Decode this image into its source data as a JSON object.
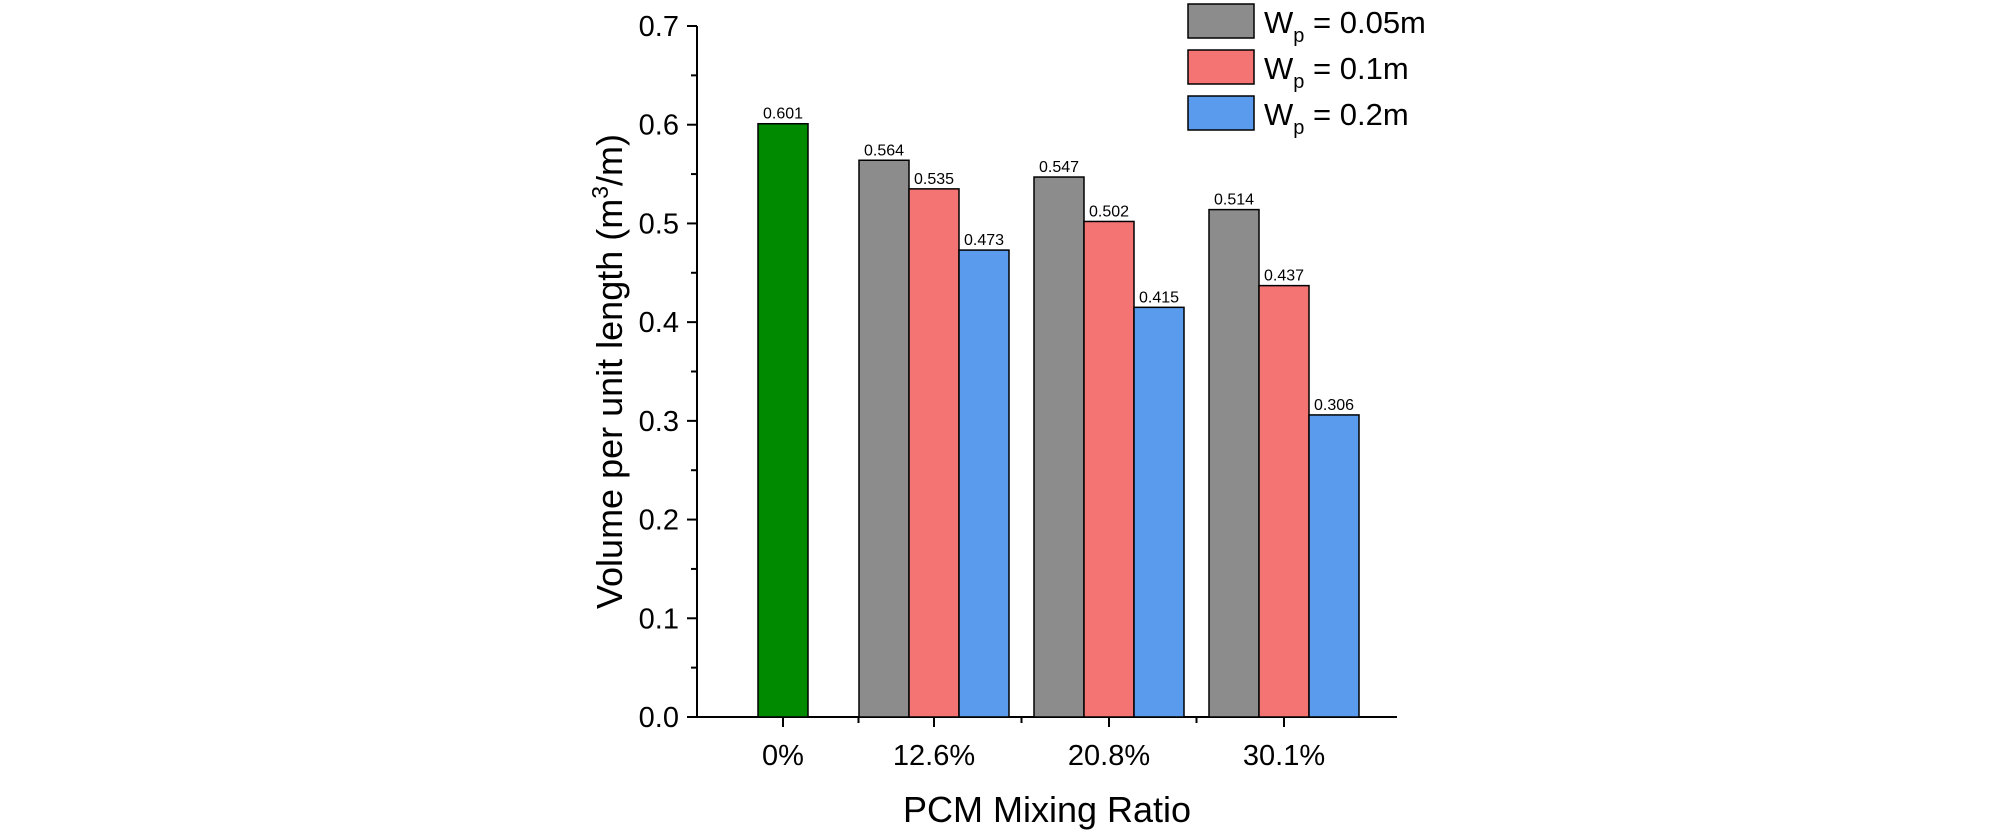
{
  "chart_data": {
    "type": "bar",
    "xlabel": "PCM Mixing Ratio",
    "ylabel": {
      "prefix": "Volume per unit length (m",
      "sup": "3",
      "suffix": "/m)"
    },
    "ylim": [
      0,
      0.7
    ],
    "yticks": [
      "0.0",
      "0.1",
      "0.2",
      "0.3",
      "0.4",
      "0.5",
      "0.6",
      "0.7"
    ],
    "categories": [
      "0%",
      "12.6%",
      "20.8%",
      "30.1%"
    ],
    "baseline": {
      "category": "0%",
      "value": 0.601,
      "label": "0.601",
      "color": "#008a00"
    },
    "series": [
      {
        "name": {
          "base": "W",
          "sub": "p",
          "rest": " = 0.05m"
        },
        "color": "#8c8c8c",
        "values": [
          null,
          0.564,
          0.547,
          0.514
        ],
        "labels": [
          "",
          "0.564",
          "0.547",
          "0.514"
        ]
      },
      {
        "name": {
          "base": "W",
          "sub": "p",
          "rest": " = 0.1m"
        },
        "color": "#f47474",
        "values": [
          null,
          0.535,
          0.502,
          0.437
        ],
        "labels": [
          "",
          "0.535",
          "0.502",
          "0.437"
        ]
      },
      {
        "name": {
          "base": "W",
          "sub": "p",
          "rest": " = 0.2m"
        },
        "color": "#5a9bee",
        "values": [
          null,
          0.473,
          0.415,
          0.306
        ],
        "labels": [
          "",
          "0.473",
          "0.415",
          "0.306"
        ]
      }
    ],
    "legend": "top-right",
    "grid": false
  }
}
